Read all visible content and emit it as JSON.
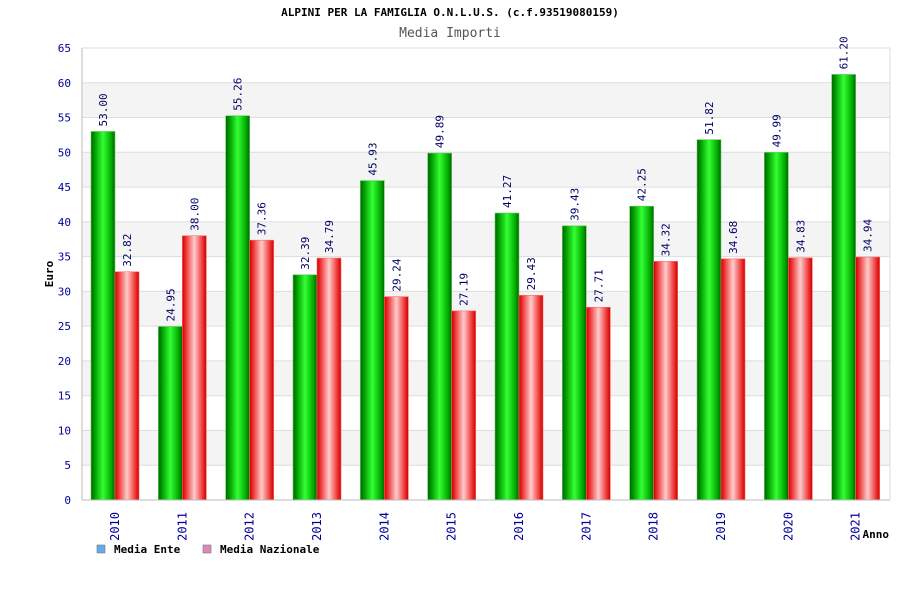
{
  "chart_data": {
    "type": "bar",
    "title": "ALPINI PER LA FAMIGLIA O.N.L.U.S. (c.f.93519080159)",
    "subtitle": "Media Importi",
    "xlabel": "Anno",
    "ylabel": "Euro",
    "ylim": [
      0,
      65
    ],
    "yticks": [
      0,
      5,
      10,
      15,
      20,
      25,
      30,
      35,
      40,
      45,
      50,
      55,
      60,
      65
    ],
    "grid": true,
    "legend_position": "bottom-left",
    "categories": [
      "2010",
      "2011",
      "2012",
      "2013",
      "2014",
      "2015",
      "2016",
      "2017",
      "2018",
      "2019",
      "2020",
      "2021"
    ],
    "series": [
      {
        "name": "Media Ente",
        "color": "#00a000",
        "legend_color": "#66aaee",
        "values": [
          53.0,
          24.95,
          55.26,
          32.39,
          45.93,
          49.89,
          41.27,
          39.43,
          42.25,
          51.82,
          49.99,
          61.2
        ],
        "labels": [
          "53.00",
          "24.95",
          "55.26",
          "32.39",
          "45.93",
          "49.89",
          "41.27",
          "39.43",
          "42.25",
          "51.82",
          "49.99",
          "61.20"
        ]
      },
      {
        "name": "Media Nazionale",
        "color": "#ee0000",
        "legend_color": "#dd88bb",
        "values": [
          32.82,
          38.0,
          37.36,
          34.79,
          29.24,
          27.19,
          29.43,
          27.71,
          34.32,
          34.68,
          34.83,
          34.94
        ],
        "labels": [
          "32.82",
          "38.00",
          "37.36",
          "34.79",
          "29.24",
          "27.19",
          "29.43",
          "27.71",
          "34.32",
          "34.68",
          "34.83",
          "34.94"
        ]
      }
    ]
  }
}
